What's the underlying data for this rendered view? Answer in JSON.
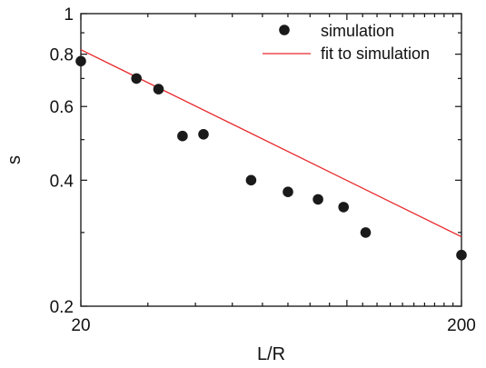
{
  "chart_data": {
    "type": "scatter",
    "xlabel": "L/R",
    "ylabel": "s",
    "x_scale": "log",
    "y_scale": "log",
    "xlim": [
      20,
      200
    ],
    "ylim": [
      0.2,
      1
    ],
    "x_ticks": [
      {
        "value": 20,
        "label": "20"
      },
      {
        "value": 200,
        "label": "200"
      }
    ],
    "y_ticks": [
      {
        "value": 0.2,
        "label": "0.2"
      },
      {
        "value": 0.4,
        "label": "0.4"
      },
      {
        "value": 0.6,
        "label": "0.6"
      },
      {
        "value": 0.8,
        "label": "0.8"
      },
      {
        "value": 1,
        "label": "1"
      }
    ],
    "grid": false,
    "legend_position": "top-right",
    "series": [
      {
        "name": "simulation",
        "kind": "points",
        "color": "#1a1a1a",
        "points": [
          {
            "x": 20,
            "y": 0.77
          },
          {
            "x": 28,
            "y": 0.7
          },
          {
            "x": 32,
            "y": 0.66
          },
          {
            "x": 37,
            "y": 0.51
          },
          {
            "x": 42,
            "y": 0.515
          },
          {
            "x": 56,
            "y": 0.4
          },
          {
            "x": 70,
            "y": 0.375
          },
          {
            "x": 84,
            "y": 0.36
          },
          {
            "x": 98,
            "y": 0.345
          },
          {
            "x": 112,
            "y": 0.3
          },
          {
            "x": 200,
            "y": 0.265
          }
        ]
      },
      {
        "name": "fit to simulation",
        "kind": "line",
        "color": "#e8272b",
        "points": [
          {
            "x": 20,
            "y": 0.82
          },
          {
            "x": 200,
            "y": 0.293
          }
        ]
      }
    ]
  }
}
